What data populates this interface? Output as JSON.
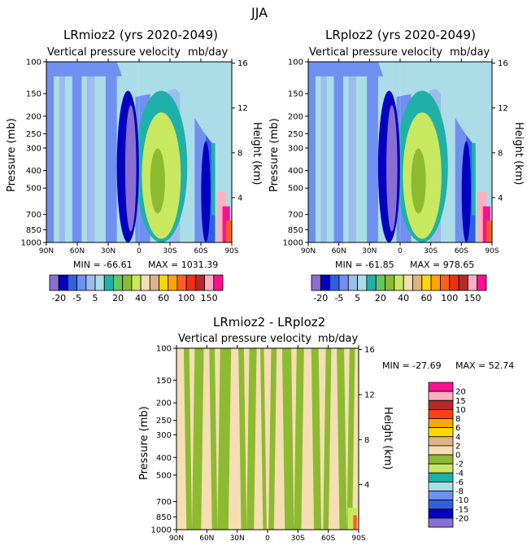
{
  "page": {
    "title": "JJA"
  },
  "panels": [
    {
      "id": "top-left",
      "title": "LRmioz2 (yrs 2020-2049)",
      "var_label": "Vertical pressure velocity",
      "units": "mb/day",
      "ylabel": "Pressure (mb)",
      "y2label": "Height (km)",
      "stats": {
        "min": "MIN = -66.61",
        "max": "MAX = 1031.39"
      }
    },
    {
      "id": "top-right",
      "title": "LRploz2 (yrs 2020-2049)",
      "var_label": "Vertical pressure velocity",
      "units": "mb/day",
      "ylabel": "Pressure (mb)",
      "y2label": "Height (km)",
      "stats": {
        "min": "MIN = -61.85",
        "max": "MAX = 978.65"
      }
    },
    {
      "id": "bottom",
      "title": "LRmioz2 - LRploz2",
      "var_label": "Vertical pressure velocity",
      "units": "mb/day",
      "ylabel": "Pressure (mb)",
      "y2label": "Height (km)",
      "stats": {
        "min": "MIN = -27.69",
        "max": "MAX = 52.74"
      }
    }
  ],
  "chart_data": [
    {
      "type": "heatmap",
      "title": "LRmioz2 (yrs 2020-2049)",
      "subtitle": "Vertical pressure velocity",
      "units": "mb/day",
      "xlabel": "",
      "ylabel": "Pressure (mb)",
      "y2label": "Height (km)",
      "x_ticks": [
        "90N",
        "60N",
        "30N",
        "0",
        "30S",
        "60S",
        "90S"
      ],
      "y_ticks": [
        100,
        150,
        200,
        250,
        300,
        400,
        500,
        700,
        850,
        1000
      ],
      "y_scale": "log",
      "y_range": [
        1000,
        100
      ],
      "y2_ticks": [
        4,
        8,
        12,
        16
      ],
      "min": -66.61,
      "max": 1031.39,
      "colorbar": {
        "labels": [
          "-20",
          "-5",
          "5",
          "20",
          "40",
          "60",
          "100",
          "150"
        ],
        "colors": [
          "#8a6fd2",
          "#0000c0",
          "#3060e0",
          "#6f90f0",
          "#9dbcec",
          "#aadde8",
          "#20b0a8",
          "#60c860",
          "#8cba30",
          "#c8e860",
          "#f5deb3",
          "#dcb486",
          "#ffd700",
          "#ffa500",
          "#ff6020",
          "#f03010",
          "#b82828",
          "#ffb0c0",
          "#ff1090"
        ]
      },
      "bands": [
        {
          "x": 0,
          "w": 4,
          "color": "#6f90f0"
        },
        {
          "x": 4,
          "w": 3,
          "color": "#aadde8"
        },
        {
          "x": 7,
          "w": 3,
          "color": "#9dbcec"
        },
        {
          "x": 10,
          "w": 4,
          "color": "#aadde8"
        },
        {
          "x": 14,
          "w": 5,
          "color": "#6f90f0"
        },
        {
          "x": 19,
          "w": 3,
          "color": "#aadde8"
        },
        {
          "x": 22,
          "w": 4,
          "color": "#9dbcec"
        },
        {
          "x": 26,
          "w": 6,
          "color": "#aadde8"
        },
        {
          "x": 32,
          "w": 6,
          "color": "#6f90f0"
        },
        {
          "x": 38,
          "w": 10,
          "color": "#aadde8"
        },
        {
          "x": 48,
          "w": 8,
          "color": "#6f90f0"
        },
        {
          "x": 56,
          "w": 10,
          "color": "#aadde8"
        },
        {
          "x": 66,
          "w": 6,
          "color": "#9dbcec"
        },
        {
          "x": 72,
          "w": 8,
          "color": "#aadde8"
        },
        {
          "x": 80,
          "w": 6,
          "color": "#6f90f0"
        },
        {
          "x": 86,
          "w": 5,
          "color": "#3060e0"
        },
        {
          "x": 91,
          "w": 9,
          "color": "#aadde8"
        }
      ]
    },
    {
      "type": "heatmap",
      "title": "LRploz2 (yrs 2020-2049)",
      "subtitle": "Vertical pressure velocity",
      "units": "mb/day",
      "xlabel": "",
      "ylabel": "Pressure (mb)",
      "y2label": "Height (km)",
      "x_ticks": [
        "90N",
        "60N",
        "30N",
        "0",
        "30S",
        "60S",
        "90S"
      ],
      "y_ticks": [
        100,
        150,
        200,
        250,
        300,
        400,
        500,
        700,
        850,
        1000
      ],
      "y_scale": "log",
      "y_range": [
        1000,
        100
      ],
      "y2_ticks": [
        4,
        8,
        12,
        16
      ],
      "min": -61.85,
      "max": 978.65
    },
    {
      "type": "heatmap",
      "title": "LRmioz2 - LRploz2",
      "subtitle": "Vertical pressure velocity",
      "units": "mb/day",
      "xlabel": "",
      "ylabel": "Pressure (mb)",
      "y2label": "Height (km)",
      "x_ticks": [
        "90N",
        "60N",
        "30N",
        "0",
        "30S",
        "60S",
        "90S"
      ],
      "y_ticks": [
        100,
        150,
        200,
        250,
        300,
        400,
        500,
        700,
        850,
        1000
      ],
      "y_scale": "log",
      "y_range": [
        1000,
        100
      ],
      "y2_ticks": [
        4,
        8,
        12,
        16
      ],
      "min": -27.69,
      "max": 52.74,
      "colorbar": {
        "labels": [
          "20",
          "15",
          "10",
          "8",
          "6",
          "4",
          "2",
          "0",
          "-2",
          "-4",
          "-6",
          "-8",
          "-10",
          "-15",
          "-20"
        ],
        "colors": [
          "#ff1090",
          "#ffb0c0",
          "#b82828",
          "#ff4010",
          "#ffa500",
          "#ffd700",
          "#dcb486",
          "#f5deb3",
          "#8cba30",
          "#c8e860",
          "#20b0a8",
          "#aadde8",
          "#6f90f0",
          "#3060e0",
          "#0000c0",
          "#8a6fd2"
        ]
      },
      "stripes": [
        {
          "x": 4,
          "w": 3,
          "color": "#8cba30"
        },
        {
          "x": 10,
          "w": 5,
          "color": "#8cba30"
        },
        {
          "x": 18,
          "w": 3,
          "color": "#8cba30"
        },
        {
          "x": 24,
          "w": 6,
          "color": "#8cba30"
        },
        {
          "x": 34,
          "w": 3,
          "color": "#8cba30"
        },
        {
          "x": 40,
          "w": 4,
          "color": "#8cba30"
        },
        {
          "x": 46,
          "w": 2,
          "color": "#8cba30"
        },
        {
          "x": 52,
          "w": 3,
          "color": "#8cba30"
        },
        {
          "x": 58,
          "w": 5,
          "color": "#8cba30"
        },
        {
          "x": 66,
          "w": 4,
          "color": "#8cba30"
        },
        {
          "x": 74,
          "w": 4,
          "color": "#8cba30"
        },
        {
          "x": 82,
          "w": 3,
          "color": "#8cba30"
        },
        {
          "x": 88,
          "w": 4,
          "color": "#8cba30"
        },
        {
          "x": 95,
          "w": 3,
          "color": "#8cba30"
        }
      ]
    }
  ]
}
